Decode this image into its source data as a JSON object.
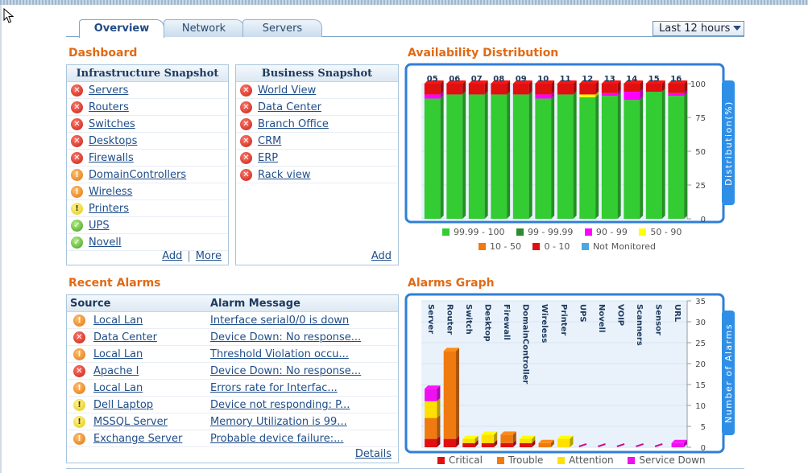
{
  "tabs": [
    {
      "label": "Overview",
      "active": true
    },
    {
      "label": "Network",
      "active": false
    },
    {
      "label": "Servers",
      "active": false
    }
  ],
  "time_range": {
    "selected": "Last 12 hours"
  },
  "dashboard": {
    "title": "Dashboard",
    "infrastructure": {
      "title": "Infrastructure Snapshot",
      "items": [
        {
          "label": "Servers",
          "status": "critical"
        },
        {
          "label": "Routers",
          "status": "critical"
        },
        {
          "label": "Switches",
          "status": "critical"
        },
        {
          "label": "Desktops",
          "status": "critical"
        },
        {
          "label": "Firewalls",
          "status": "critical"
        },
        {
          "label": "DomainControllers",
          "status": "trouble"
        },
        {
          "label": "Wireless",
          "status": "trouble"
        },
        {
          "label": "Printers",
          "status": "attention"
        },
        {
          "label": "UPS",
          "status": "clear"
        },
        {
          "label": "Novell",
          "status": "clear"
        }
      ],
      "add_label": "Add",
      "sep": "|",
      "more_label": "More"
    },
    "business": {
      "title": "Business Snapshot",
      "items": [
        {
          "label": "World View",
          "status": "critical"
        },
        {
          "label": "Data Center",
          "status": "critical"
        },
        {
          "label": "Branch Office",
          "status": "critical"
        },
        {
          "label": "CRM",
          "status": "critical"
        },
        {
          "label": "ERP",
          "status": "critical"
        },
        {
          "label": "Rack view",
          "status": "critical"
        }
      ],
      "add_label": "Add"
    }
  },
  "recent_alarms": {
    "title": "Recent Alarms",
    "col_source": "Source",
    "col_message": "Alarm Message",
    "rows": [
      {
        "source": "Local Lan",
        "message": "Interface serial0/0 is down",
        "status": "trouble"
      },
      {
        "source": "Data Center",
        "message": "Device Down: No response...",
        "status": "critical"
      },
      {
        "source": "Local Lan",
        "message": "Threshold Violation occu...",
        "status": "trouble"
      },
      {
        "source": "Apache I",
        "message": "Device Down: No response...",
        "status": "critical"
      },
      {
        "source": "Local Lan",
        "message": "Errors rate for Interfac...",
        "status": "trouble"
      },
      {
        "source": "Dell Laptop",
        "message": "Device not responding: P...",
        "status": "attention"
      },
      {
        "source": "MSSQL Server",
        "message": "Memory Utilization is 99...",
        "status": "attention"
      },
      {
        "source": "Exchange Server",
        "message": "Probable device failure:...",
        "status": "trouble"
      }
    ],
    "details_label": "Details"
  },
  "colors": {
    "g100": "#33cc33",
    "g99": "#2e8b2e",
    "pink": "#ff00ff",
    "yellow": "#ffff00",
    "orange": "#f07a10",
    "red": "#e01010",
    "blue": "#4da6e0",
    "critical": "#e01010",
    "trouble": "#f07a10",
    "attention": "#ffe000",
    "service_down": "#ee10ee"
  },
  "chart_data": [
    {
      "type": "bar",
      "stacked": true,
      "title": "Availability Distribution",
      "ylabel": "Distribution(%)",
      "ylim": [
        0,
        100
      ],
      "yticks": [
        0,
        25,
        50,
        75,
        100
      ],
      "categories": [
        "05",
        "06",
        "07",
        "08",
        "09",
        "10",
        "11",
        "12",
        "13",
        "14",
        "15",
        "16"
      ],
      "series": [
        {
          "name": "99.99 - 100",
          "key": "g100",
          "values": [
            89,
            92,
            92,
            92,
            92,
            89,
            92,
            90,
            91,
            88,
            94,
            91
          ]
        },
        {
          "name": "99 - 99.99",
          "key": "g99",
          "values": [
            0,
            0,
            0,
            0,
            0,
            0,
            0,
            0,
            0,
            0,
            0,
            0
          ]
        },
        {
          "name": "90 - 99",
          "key": "pink",
          "values": [
            3,
            0,
            0,
            0,
            0,
            3,
            0,
            0,
            2,
            6,
            0,
            2
          ]
        },
        {
          "name": "50 - 90",
          "key": "yellow",
          "values": [
            0,
            0,
            0,
            0,
            0,
            0,
            0,
            2,
            0,
            0,
            0,
            0
          ]
        },
        {
          "name": "10 - 50",
          "key": "orange",
          "values": [
            0,
            0,
            0,
            0,
            0,
            0,
            0,
            0,
            0,
            0,
            0,
            0
          ]
        },
        {
          "name": "0 - 10",
          "key": "red",
          "values": [
            8,
            8,
            8,
            8,
            8,
            8,
            8,
            8,
            7,
            6,
            6,
            7
          ]
        },
        {
          "name": "Not Monitored",
          "key": "blue",
          "values": [
            0,
            0,
            0,
            0,
            0,
            0,
            0,
            0,
            0,
            0,
            0,
            0
          ]
        }
      ]
    },
    {
      "type": "bar",
      "stacked": true,
      "title": "Alarms Graph",
      "ylabel": "Number of Alarms",
      "ylim": [
        0,
        35
      ],
      "yticks": [
        0,
        5,
        10,
        15,
        20,
        25,
        30,
        35
      ],
      "categories": [
        "Server",
        "Router",
        "Switch",
        "Desktop",
        "Firewall",
        "DomainController",
        "Wireless",
        "Printer",
        "UPS",
        "Novell",
        "VOIP",
        "Scanners",
        "Sensor",
        "URL"
      ],
      "series": [
        {
          "name": "Critical",
          "key": "critical",
          "values": [
            2,
            2,
            1,
            1,
            1,
            1,
            0,
            0,
            0,
            0,
            0,
            0,
            0,
            0
          ]
        },
        {
          "name": "Trouble",
          "key": "trouble",
          "values": [
            5,
            21,
            0,
            0,
            2,
            0,
            1,
            0,
            0,
            0,
            0,
            0,
            0,
            0
          ]
        },
        {
          "name": "Attention",
          "key": "attention",
          "values": [
            4,
            0,
            1,
            2,
            0,
            1,
            0,
            2,
            0,
            0,
            0,
            0,
            0,
            0
          ]
        },
        {
          "name": "Service Down",
          "key": "service_down",
          "values": [
            3,
            0,
            0,
            0,
            0,
            0,
            0,
            0,
            0,
            0,
            0,
            0,
            0,
            1
          ]
        }
      ]
    }
  ]
}
